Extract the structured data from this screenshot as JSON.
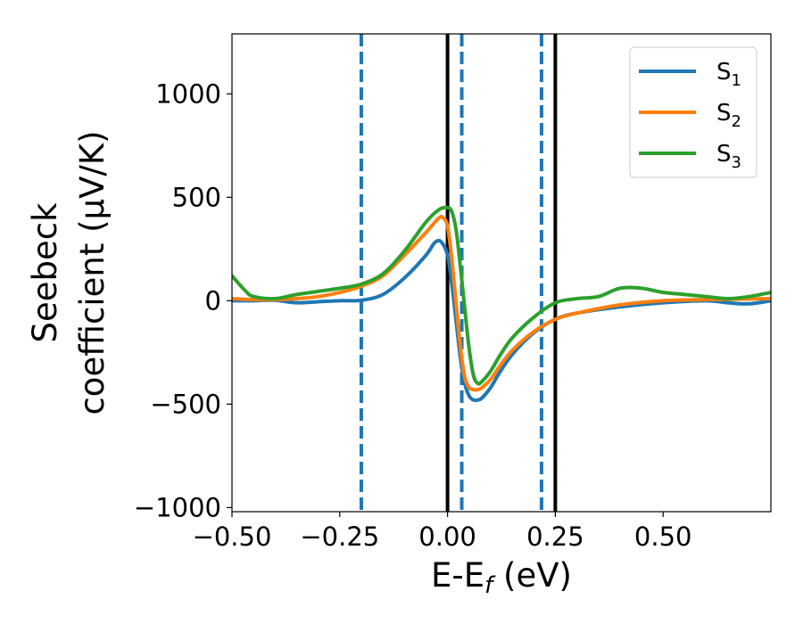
{
  "chart_data": {
    "type": "line",
    "xlabel": "E-E",
    "xlabel_sub": "f",
    "xlabel_unit": " (eV)",
    "ylabel_line1": "Seebeck",
    "ylabel_line2": "coefficient  (μV/K)",
    "xlim": [
      -0.5,
      0.75
    ],
    "ylim": [
      -1020,
      1290
    ],
    "xticks": [
      -0.5,
      -0.25,
      0.0,
      0.25,
      0.5
    ],
    "xtick_labels": [
      "−0.50",
      "−0.25",
      "0.00",
      "0.25",
      "0.50"
    ],
    "yticks": [
      -1000,
      -500,
      0,
      500,
      1000
    ],
    "ytick_labels": [
      "−1000",
      "−500",
      "0",
      "500",
      "1000"
    ],
    "legend_position": "top-right",
    "grid": false,
    "vlines_solid": [
      0.0,
      0.25
    ],
    "vlines_dashed": [
      -0.2,
      0.033,
      0.218
    ],
    "series": [
      {
        "name": "S",
        "name_sub": "1",
        "color": "#1f77b4",
        "x": [
          -0.5,
          -0.45,
          -0.4,
          -0.35,
          -0.3,
          -0.25,
          -0.2,
          -0.15,
          -0.1,
          -0.05,
          -0.03,
          -0.015,
          0.0,
          0.01,
          0.02,
          0.03,
          0.04,
          0.05,
          0.06,
          0.07,
          0.08,
          0.1,
          0.12,
          0.15,
          0.2,
          0.25,
          0.3,
          0.4,
          0.5,
          0.6,
          0.65,
          0.7,
          0.75
        ],
        "y": [
          0,
          0,
          2,
          -10,
          -5,
          0,
          2,
          30,
          110,
          220,
          280,
          285,
          220,
          80,
          -100,
          -280,
          -400,
          -460,
          -480,
          -480,
          -470,
          -420,
          -350,
          -260,
          -155,
          -90,
          -60,
          -30,
          -10,
          0,
          -10,
          -15,
          0
        ]
      },
      {
        "name": "S",
        "name_sub": "2",
        "color": "#ff7f0e",
        "x": [
          -0.5,
          -0.45,
          -0.4,
          -0.35,
          -0.3,
          -0.25,
          -0.2,
          -0.15,
          -0.1,
          -0.05,
          -0.02,
          -0.01,
          0.0,
          0.01,
          0.02,
          0.03,
          0.04,
          0.05,
          0.06,
          0.07,
          0.08,
          0.1,
          0.12,
          0.15,
          0.2,
          0.25,
          0.3,
          0.4,
          0.5,
          0.6,
          0.75
        ],
        "y": [
          10,
          5,
          5,
          10,
          20,
          40,
          70,
          120,
          220,
          330,
          400,
          400,
          360,
          200,
          -20,
          -230,
          -370,
          -420,
          -430,
          -430,
          -420,
          -380,
          -320,
          -240,
          -150,
          -90,
          -60,
          -20,
          0,
          5,
          10
        ]
      },
      {
        "name": "S",
        "name_sub": "3",
        "color": "#2ca02c",
        "x": [
          -0.5,
          -0.47,
          -0.45,
          -0.4,
          -0.35,
          -0.3,
          -0.25,
          -0.2,
          -0.15,
          -0.1,
          -0.05,
          -0.02,
          0.0,
          0.01,
          0.02,
          0.03,
          0.04,
          0.05,
          0.06,
          0.07,
          0.08,
          0.1,
          0.12,
          0.15,
          0.2,
          0.25,
          0.3,
          0.35,
          0.4,
          0.45,
          0.5,
          0.55,
          0.6,
          0.65,
          0.7,
          0.75
        ],
        "y": [
          120,
          50,
          20,
          10,
          30,
          45,
          60,
          80,
          130,
          240,
          380,
          440,
          450,
          430,
          340,
          160,
          -40,
          -230,
          -360,
          -400,
          -390,
          -340,
          -270,
          -180,
          -80,
          -10,
          10,
          20,
          60,
          60,
          40,
          30,
          20,
          10,
          20,
          40
        ]
      }
    ]
  }
}
